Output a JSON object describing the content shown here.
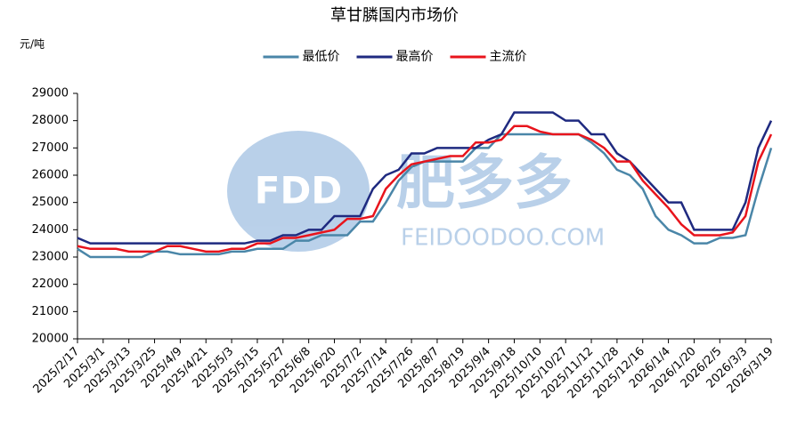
{
  "chart_data": {
    "type": "line",
    "title": "草甘膦国内市场价",
    "y_label": "元/吨",
    "watermark": [
      "FDD",
      "肥多多",
      "FEIDOODOO.COM"
    ],
    "categories": [
      "2025/2/17",
      null,
      "2025/3/1",
      null,
      "2025/3/13",
      null,
      "2025/3/25",
      null,
      "2025/4/9",
      null,
      "2025/4/21",
      null,
      "2025/5/3",
      null,
      "2025/5/15",
      null,
      "2025/5/27",
      null,
      "2025/6/8",
      null,
      "2025/6/20",
      null,
      "2025/7/2",
      null,
      "2025/7/14",
      null,
      "2025/7/26",
      null,
      "2025/8/7",
      null,
      "2025/8/19",
      null,
      "2025/9/4",
      null,
      "2025/9/18",
      null,
      "2025/10/10",
      null,
      "2025/10/27",
      null,
      "2025/11/12",
      null,
      "2025/11/28",
      null,
      "2025/12/16",
      null,
      "2026/1/4",
      null,
      "2026/1/20",
      null,
      "2026/2/5",
      null,
      "2026/3/3",
      null,
      "2026/3/19"
    ],
    "series": [
      {
        "name": "最低价",
        "color": "#4a86a8",
        "values": [
          23300,
          23000,
          23000,
          23000,
          23000,
          23000,
          23200,
          23200,
          23100,
          23100,
          23100,
          23100,
          23200,
          23200,
          23300,
          23300,
          23300,
          23600,
          23600,
          23800,
          23800,
          23800,
          24300,
          24300,
          25000,
          25800,
          26300,
          26500,
          26500,
          26500,
          26500,
          27000,
          27000,
          27500,
          27500,
          27500,
          27500,
          27500,
          27500,
          27500,
          27200,
          26800,
          26200,
          26000,
          25500,
          24500,
          24000,
          23800,
          23500,
          23500,
          23700,
          23700,
          23800,
          25500,
          27000
        ]
      },
      {
        "name": "最高价",
        "color": "#1f2a80",
        "values": [
          23700,
          23500,
          23500,
          23500,
          23500,
          23500,
          23500,
          23500,
          23500,
          23500,
          23500,
          23500,
          23500,
          23500,
          23600,
          23600,
          23800,
          23800,
          24000,
          24000,
          24500,
          24500,
          24500,
          25500,
          26000,
          26200,
          26800,
          26800,
          27000,
          27000,
          27000,
          27000,
          27300,
          27500,
          28300,
          28300,
          28300,
          28300,
          28000,
          28000,
          27500,
          27500,
          26800,
          26500,
          26000,
          25500,
          25000,
          25000,
          24000,
          24000,
          24000,
          24000,
          25000,
          27000,
          28000
        ]
      },
      {
        "name": "主流价",
        "color": "#e8141c",
        "values": [
          23400,
          23300,
          23300,
          23300,
          23200,
          23200,
          23200,
          23400,
          23400,
          23300,
          23200,
          23200,
          23300,
          23300,
          23500,
          23500,
          23700,
          23700,
          23800,
          23900,
          24000,
          24400,
          24400,
          24500,
          25500,
          26000,
          26400,
          26500,
          26600,
          26700,
          26700,
          27200,
          27200,
          27300,
          27800,
          27800,
          27600,
          27500,
          27500,
          27500,
          27300,
          27000,
          26500,
          26500,
          25800,
          25300,
          24800,
          24200,
          23800,
          23800,
          23800,
          23900,
          24500,
          26500,
          27500
        ]
      }
    ],
    "ylim": [
      20000,
      29000
    ],
    "yticks": [
      20000,
      21000,
      22000,
      23000,
      24000,
      25000,
      26000,
      27000,
      28000,
      29000
    ],
    "legend": "top",
    "grid": false
  }
}
